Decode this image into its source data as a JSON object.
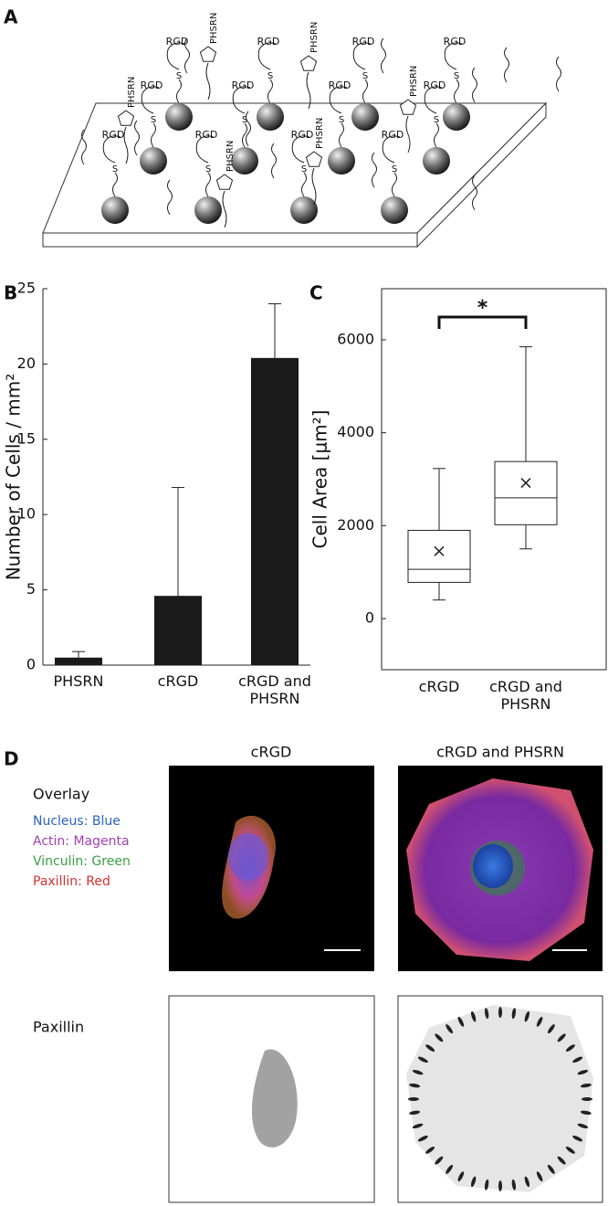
{
  "panel_labels": [
    "A",
    "B",
    "C",
    "D"
  ],
  "diagram": {
    "ligand": "RGD",
    "peptide": "PHSRN",
    "linker": "S"
  },
  "chart_data": [
    {
      "type": "bar",
      "categories": [
        "PHSRN",
        "cRGD",
        "cRGD and PHSRN"
      ],
      "values": [
        0.5,
        4.6,
        20.4
      ],
      "errors": [
        0.4,
        7.2,
        3.6
      ],
      "color": "#1a1a1a",
      "y_label": "Number of Cells / mm²",
      "ylim": [
        0,
        25
      ],
      "yticks": [
        0,
        5,
        10,
        15,
        20,
        25
      ]
    },
    {
      "type": "box",
      "categories": [
        "cRGD",
        "cRGD and PHSRN"
      ],
      "boxes": [
        {
          "min": 400,
          "q1": 780,
          "median": 1060,
          "q3": 1900,
          "max": 3230,
          "mean": 1450
        },
        {
          "min": 1500,
          "q1": 2020,
          "median": 2600,
          "q3": 3380,
          "max": 5850,
          "mean": 2920
        }
      ],
      "y_label": "Cell Area [μm²]",
      "annotation": "*",
      "ylim": [
        -1100,
        7100
      ],
      "yticks": [
        0,
        2000,
        4000,
        6000
      ]
    }
  ],
  "microscopy": {
    "column_titles": [
      "cRGD",
      "cRGD and PHSRN"
    ],
    "row_labels": [
      "Overlay",
      "Paxillin"
    ],
    "legend": [
      {
        "text": "Nucleus: Blue",
        "color": "#2a63b8"
      },
      {
        "text": "Actin: Magenta",
        "color": "#a040b0"
      },
      {
        "text": "Vinculin: Green",
        "color": "#3aa040"
      },
      {
        "text": "Paxillin: Red",
        "color": "#d83030"
      }
    ]
  }
}
